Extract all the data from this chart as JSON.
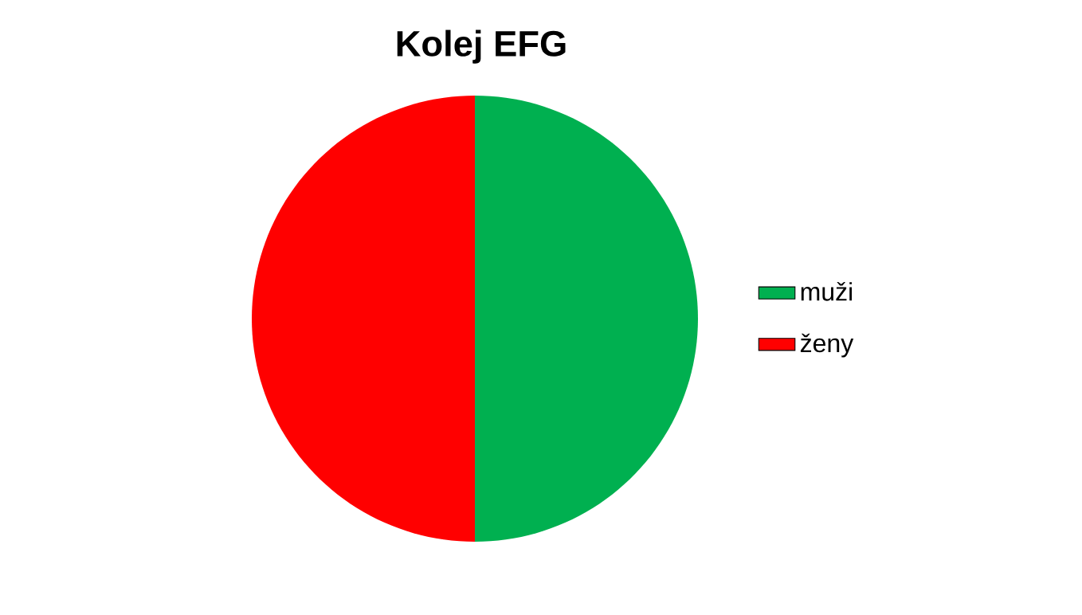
{
  "chart_data": {
    "type": "pie",
    "title": "Kolej EFG",
    "categories": [
      "muži",
      "ženy"
    ],
    "values": [
      50,
      50
    ],
    "colors": [
      "#00b050",
      "#ff0000"
    ],
    "legend": "right"
  }
}
